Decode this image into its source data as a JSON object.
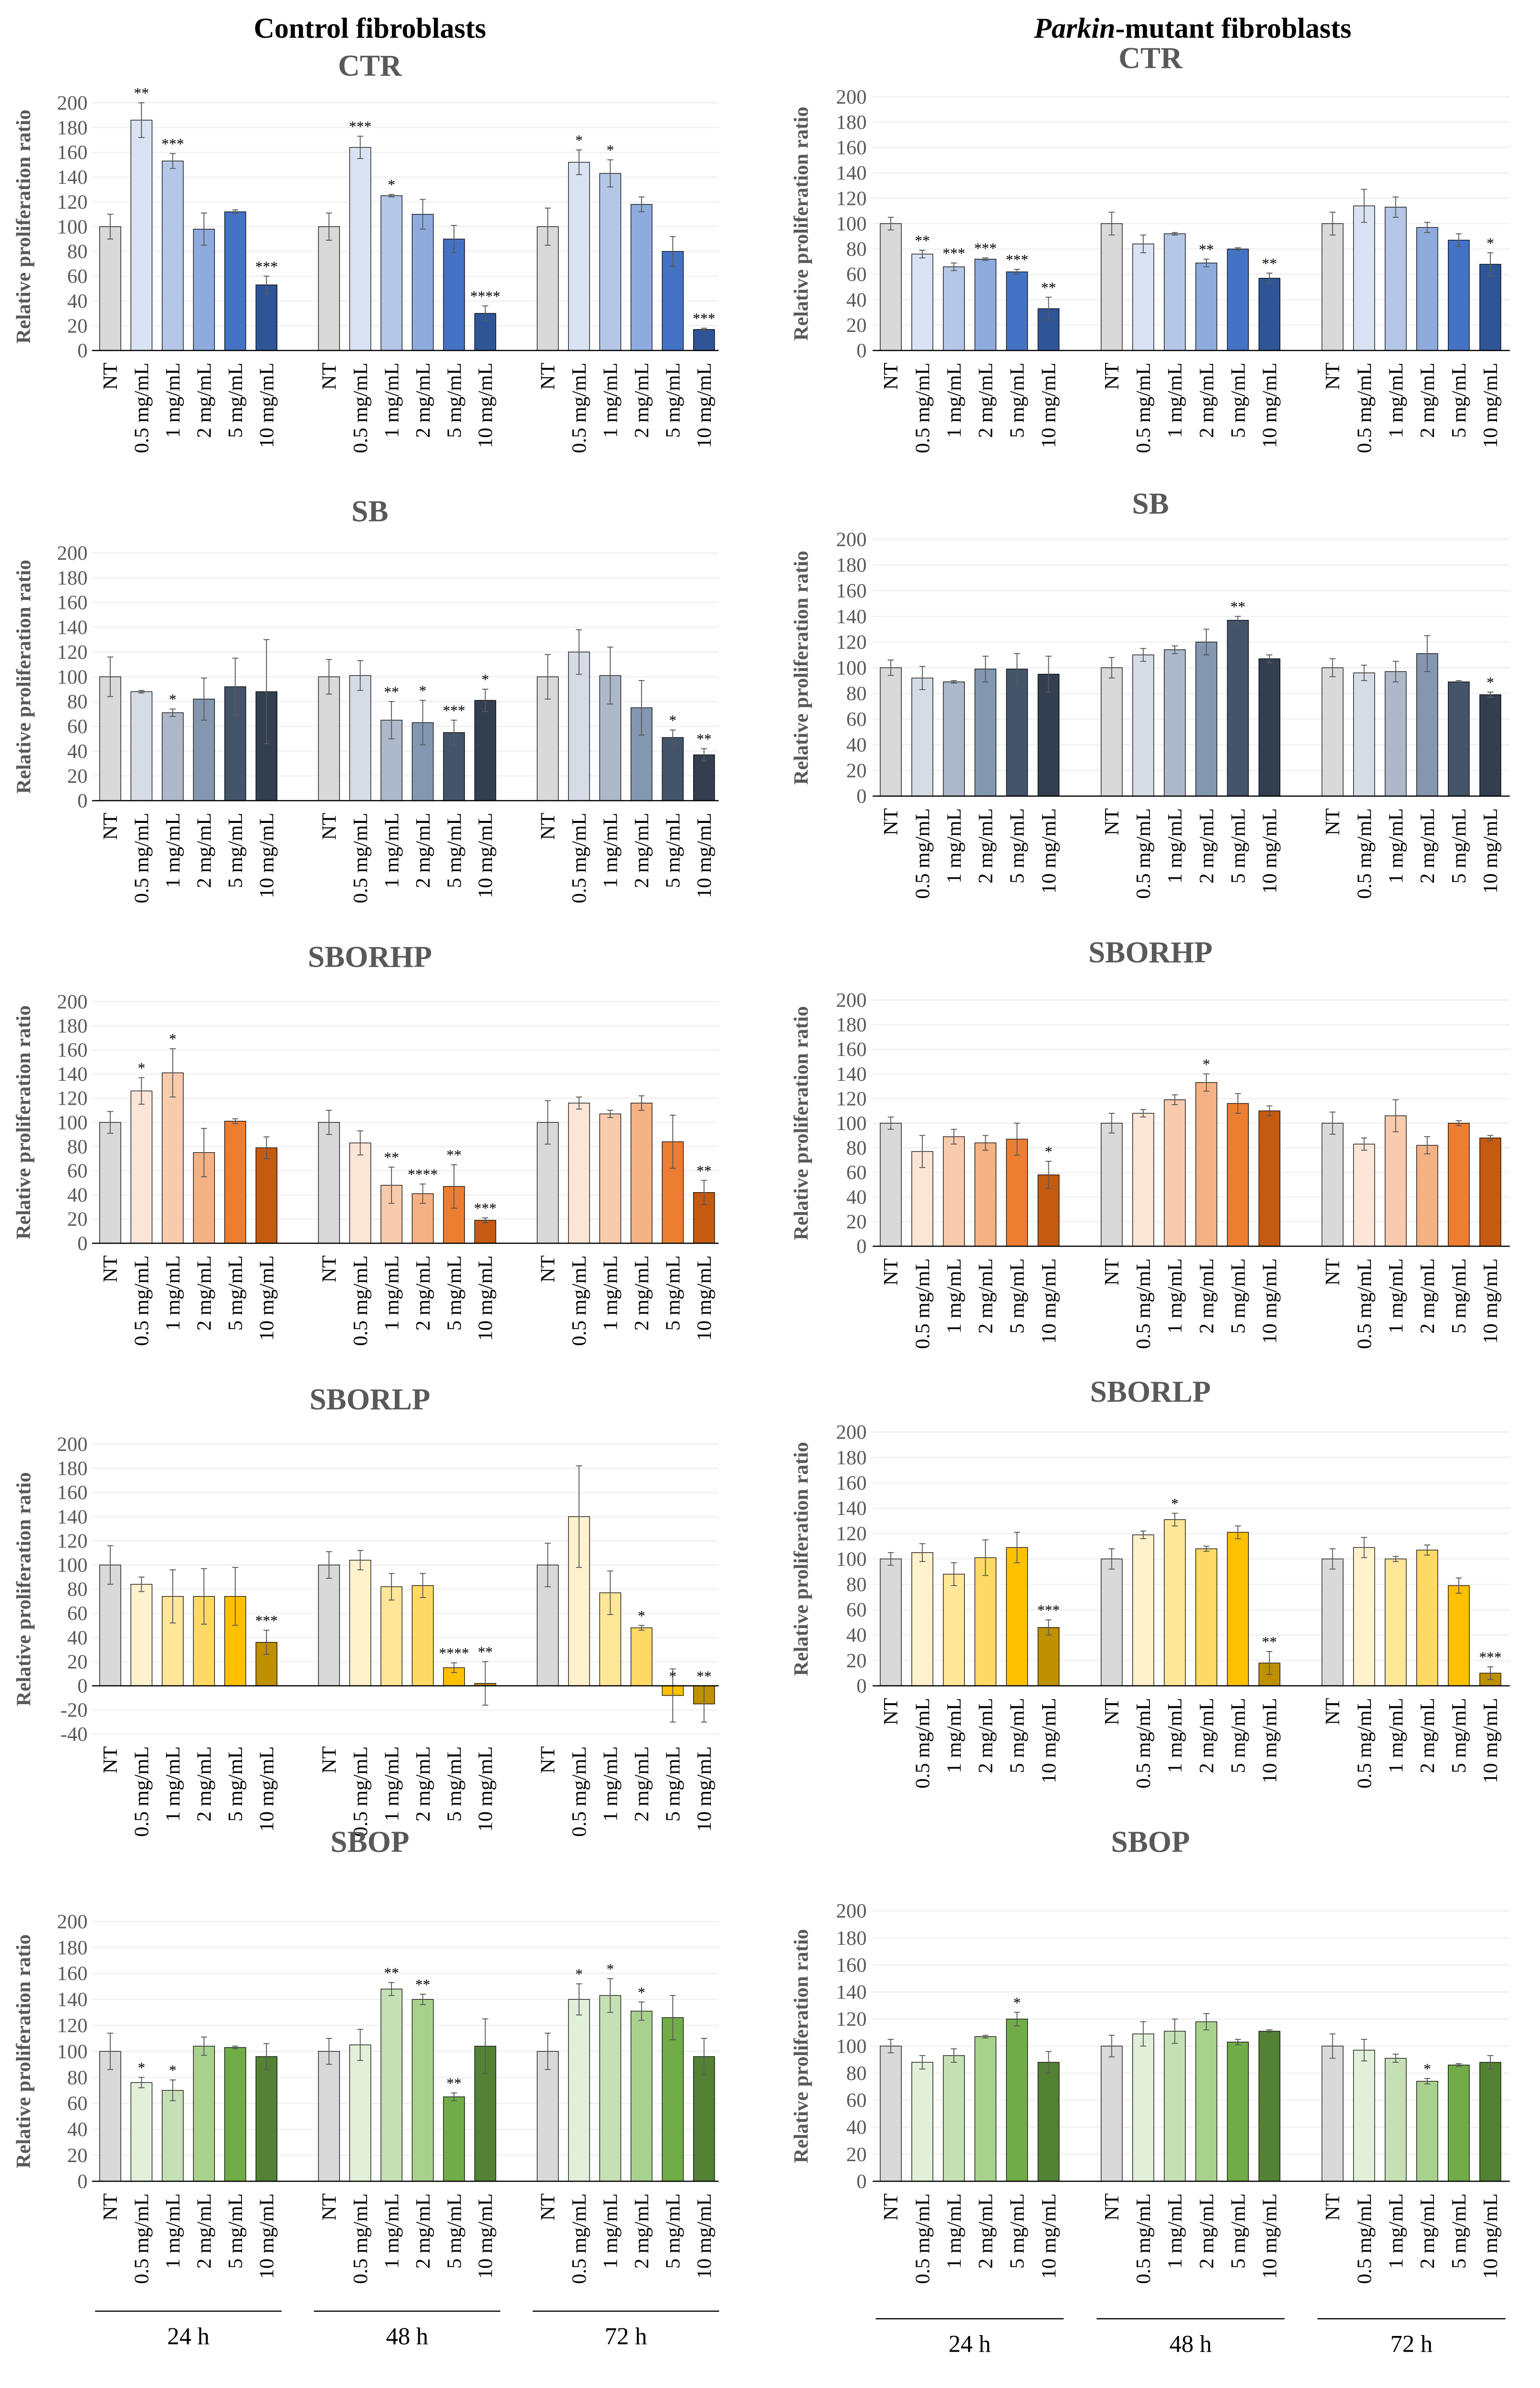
{
  "column_titles": {
    "control": "Control fibroblasts",
    "parkin_italic": "Parkin",
    "parkin_rest": "-mutant fibroblasts"
  },
  "time_points": [
    "24 h",
    "48 h",
    "72 h"
  ],
  "chart_data": [
    {
      "type": "bar",
      "panel": "control",
      "title": "CTR",
      "ylabel": "Relative proliferation ratio",
      "ylim": [
        0,
        200
      ],
      "yticks": [
        0,
        20,
        40,
        60,
        80,
        100,
        120,
        140,
        160,
        180,
        200
      ],
      "categories": [
        "NT",
        "0.5 mg/mL",
        "1 mg/mL",
        "2 mg/mL",
        "5 mg/mL",
        "10 mg/mL"
      ],
      "colors": [
        "#d9d9d9",
        "#dae3f3",
        "#b4c7e7",
        "#8faadc",
        "#4472c4",
        "#2f5597"
      ],
      "groups": [
        {
          "label": "24 h",
          "values": [
            100,
            186,
            153,
            98,
            112,
            53
          ],
          "errors": [
            10,
            14,
            6,
            13,
            1.5,
            7
          ],
          "stars": [
            "",
            "**",
            "***",
            "",
            "",
            "***"
          ]
        },
        {
          "label": "48 h",
          "values": [
            100,
            164,
            125,
            110,
            90,
            30
          ],
          "errors": [
            11,
            9,
            1,
            12,
            11,
            6
          ],
          "stars": [
            "",
            "***",
            "*",
            "",
            "",
            "****"
          ]
        },
        {
          "label": "72 h",
          "values": [
            100,
            152,
            143,
            118,
            80,
            17
          ],
          "errors": [
            15,
            10,
            11,
            6,
            12,
            1
          ],
          "stars": [
            "",
            "*",
            "*",
            "",
            "",
            "***"
          ]
        }
      ]
    },
    {
      "type": "bar",
      "panel": "control",
      "title": "SB",
      "ylabel": "Relative proliferation ratio",
      "ylim": [
        0,
        200
      ],
      "yticks": [
        0,
        20,
        40,
        60,
        80,
        100,
        120,
        140,
        160,
        180,
        200
      ],
      "categories": [
        "NT",
        "0.5 mg/mL",
        "1 mg/mL",
        "2 mg/mL",
        "5 mg/mL",
        "10 mg/mL"
      ],
      "colors": [
        "#d9d9d9",
        "#d6dce5",
        "#adb9ca",
        "#8497b0",
        "#44546a",
        "#333f50"
      ],
      "groups": [
        {
          "label": "24 h",
          "values": [
            100,
            88,
            71,
            82,
            92,
            88
          ],
          "errors": [
            16,
            1,
            3,
            17,
            23,
            42
          ],
          "stars": [
            "",
            "",
            "*",
            "",
            "",
            ""
          ]
        },
        {
          "label": "48 h",
          "values": [
            100,
            101,
            65,
            63,
            55,
            81
          ],
          "errors": [
            14,
            12,
            15,
            18,
            10,
            9
          ],
          "stars": [
            "",
            "",
            "**",
            "*",
            "***",
            "*"
          ]
        },
        {
          "label": "72 h",
          "values": [
            100,
            120,
            101,
            75,
            51,
            37
          ],
          "errors": [
            18,
            18,
            23,
            22,
            6,
            5
          ],
          "stars": [
            "",
            "",
            "",
            "",
            "*",
            "**"
          ]
        }
      ]
    },
    {
      "type": "bar",
      "panel": "control",
      "title": "SBORHP",
      "ylabel": "Relative proliferation ratio",
      "ylim": [
        0,
        200
      ],
      "yticks": [
        0,
        20,
        40,
        60,
        80,
        100,
        120,
        140,
        160,
        180,
        200
      ],
      "categories": [
        "NT",
        "0.5 mg/mL",
        "1 mg/mL",
        "2 mg/mL",
        "5 mg/mL",
        "10 mg/mL"
      ],
      "colors": [
        "#d9d9d9",
        "#fbe5d6",
        "#f8cbad",
        "#f4b183",
        "#ed7d31",
        "#c55a11"
      ],
      "groups": [
        {
          "label": "24 h",
          "values": [
            100,
            126,
            141,
            75,
            101,
            79
          ],
          "errors": [
            9,
            11,
            20,
            20,
            2,
            9
          ],
          "stars": [
            "",
            "*",
            "*",
            "",
            "",
            ""
          ]
        },
        {
          "label": "48 h",
          "values": [
            100,
            83,
            48,
            41,
            47,
            19
          ],
          "errors": [
            10,
            10,
            15,
            8,
            18,
            2
          ],
          "stars": [
            "",
            "",
            "**",
            "****",
            "**",
            "***"
          ]
        },
        {
          "label": "72 h",
          "values": [
            100,
            116,
            107,
            116,
            84,
            42
          ],
          "errors": [
            18,
            5,
            3,
            6,
            22,
            10
          ],
          "stars": [
            "",
            "",
            "",
            "",
            "",
            "**"
          ]
        }
      ]
    },
    {
      "type": "bar",
      "panel": "control",
      "title": "SBORLP",
      "ylabel": "Relative proliferation ratio",
      "ylim": [
        -40,
        200
      ],
      "yticks": [
        -40,
        -20,
        0,
        20,
        40,
        60,
        80,
        100,
        120,
        140,
        160,
        180,
        200
      ],
      "categories": [
        "NT",
        "0.5 mg/mL",
        "1 mg/mL",
        "2 mg/mL",
        "5 mg/mL",
        "10 mg/mL"
      ],
      "colors": [
        "#d9d9d9",
        "#fff2cc",
        "#ffe699",
        "#ffd966",
        "#ffc000",
        "#bf9000"
      ],
      "groups": [
        {
          "label": "24 h",
          "values": [
            100,
            84,
            74,
            74,
            74,
            36
          ],
          "errors": [
            16,
            6,
            22,
            23,
            24,
            10
          ],
          "stars": [
            "",
            "",
            "",
            "",
            "",
            "***"
          ]
        },
        {
          "label": "48 h",
          "values": [
            100,
            104,
            82,
            83,
            15,
            2
          ],
          "errors": [
            11,
            8,
            11,
            10,
            4,
            18
          ],
          "stars": [
            "",
            "",
            "",
            "",
            "****",
            "**"
          ]
        },
        {
          "label": "72 h",
          "values": [
            100,
            140,
            77,
            48,
            -8,
            -15
          ],
          "errors": [
            18,
            42,
            18,
            2,
            22,
            15
          ],
          "stars": [
            "",
            "",
            "",
            "*",
            "*",
            "**"
          ]
        }
      ]
    },
    {
      "type": "bar",
      "panel": "control",
      "title": "SBOP",
      "ylabel": "Relative proliferation ratio",
      "ylim": [
        0,
        200
      ],
      "yticks": [
        0,
        20,
        40,
        60,
        80,
        100,
        120,
        140,
        160,
        180,
        200
      ],
      "categories": [
        "NT",
        "0.5 mg/mL",
        "1 mg/mL",
        "2 mg/mL",
        "5 mg/mL",
        "10 mg/mL"
      ],
      "colors": [
        "#d9d9d9",
        "#e2f0d9",
        "#c5e0b4",
        "#a9d18e",
        "#70ad47",
        "#548235"
      ],
      "groups": [
        {
          "label": "24 h",
          "values": [
            100,
            76,
            70,
            104,
            103,
            96
          ],
          "errors": [
            14,
            4,
            8,
            7,
            1,
            10
          ],
          "stars": [
            "",
            "*",
            "*",
            "",
            "",
            ""
          ]
        },
        {
          "label": "48 h",
          "values": [
            100,
            105,
            148,
            140,
            65,
            104
          ],
          "errors": [
            10,
            12,
            5,
            4,
            3,
            21
          ],
          "stars": [
            "",
            "",
            "**",
            "**",
            "**",
            ""
          ]
        },
        {
          "label": "72 h",
          "values": [
            100,
            140,
            143,
            131,
            126,
            96
          ],
          "errors": [
            14,
            12,
            13,
            7,
            17,
            14
          ],
          "stars": [
            "",
            "*",
            "*",
            "*",
            "",
            ""
          ]
        }
      ]
    },
    {
      "type": "bar",
      "panel": "parkin",
      "title": "CTR",
      "ylabel": "Relative proliferation ratio",
      "ylim": [
        0,
        200
      ],
      "yticks": [
        0,
        20,
        40,
        60,
        80,
        100,
        120,
        140,
        160,
        180,
        200
      ],
      "categories": [
        "NT",
        "0.5 mg/mL",
        "1 mg/mL",
        "2 mg/mL",
        "5 mg/mL",
        "10 mg/mL"
      ],
      "colors": [
        "#d9d9d9",
        "#dae3f3",
        "#b4c7e7",
        "#8faadc",
        "#4472c4",
        "#2f5597"
      ],
      "groups": [
        {
          "label": "24 h",
          "values": [
            100,
            76,
            66,
            72,
            62,
            33
          ],
          "errors": [
            5,
            3,
            3,
            1,
            2,
            9
          ],
          "stars": [
            "",
            "**",
            "***",
            "***",
            "***",
            "**"
          ]
        },
        {
          "label": "48 h",
          "values": [
            100,
            84,
            92,
            69,
            80,
            57
          ],
          "errors": [
            9,
            7,
            1,
            3,
            1,
            4
          ],
          "stars": [
            "",
            "",
            "",
            "**",
            "",
            "**"
          ]
        },
        {
          "label": "72 h",
          "values": [
            100,
            114,
            113,
            97,
            87,
            68
          ],
          "errors": [
            9,
            13,
            8,
            4,
            5,
            9
          ],
          "stars": [
            "",
            "",
            "",
            "",
            "",
            "*"
          ]
        }
      ]
    },
    {
      "type": "bar",
      "panel": "parkin",
      "title": "SB",
      "ylabel": "Relative proliferation ratio",
      "ylim": [
        0,
        200
      ],
      "yticks": [
        0,
        20,
        40,
        60,
        80,
        100,
        120,
        140,
        160,
        180,
        200
      ],
      "categories": [
        "NT",
        "0.5 mg/mL",
        "1 mg/mL",
        "2 mg/mL",
        "5 mg/mL",
        "10 mg/mL"
      ],
      "colors": [
        "#d9d9d9",
        "#d6dce5",
        "#adb9ca",
        "#8497b0",
        "#44546a",
        "#333f50"
      ],
      "groups": [
        {
          "label": "24 h",
          "values": [
            100,
            92,
            89,
            99,
            99,
            95
          ],
          "errors": [
            6,
            9,
            1,
            10,
            12,
            14
          ],
          "stars": [
            "",
            "",
            "",
            "",
            "",
            ""
          ]
        },
        {
          "label": "48 h",
          "values": [
            100,
            110,
            114,
            120,
            137,
            107
          ],
          "errors": [
            8,
            5,
            3,
            10,
            3,
            3
          ],
          "stars": [
            "",
            "",
            "",
            "",
            "**",
            ""
          ]
        },
        {
          "label": "72 h",
          "values": [
            100,
            96,
            97,
            111,
            89,
            79
          ],
          "errors": [
            7,
            6,
            8,
            14,
            1,
            2
          ],
          "stars": [
            "",
            "",
            "",
            "",
            "",
            "*"
          ]
        }
      ]
    },
    {
      "type": "bar",
      "panel": "parkin",
      "title": "SBORHP",
      "ylabel": "Relative proliferation ratio",
      "ylim": [
        0,
        200
      ],
      "yticks": [
        0,
        20,
        40,
        60,
        80,
        100,
        120,
        140,
        160,
        180,
        200
      ],
      "categories": [
        "NT",
        "0.5 mg/mL",
        "1 mg/mL",
        "2 mg/mL",
        "5 mg/mL",
        "10 mg/mL"
      ],
      "colors": [
        "#d9d9d9",
        "#fbe5d6",
        "#f8cbad",
        "#f4b183",
        "#ed7d31",
        "#c55a11"
      ],
      "groups": [
        {
          "label": "24 h",
          "values": [
            100,
            77,
            89,
            84,
            87,
            58
          ],
          "errors": [
            5,
            13,
            6,
            6,
            13,
            11
          ],
          "stars": [
            "",
            "",
            "",
            "",
            "",
            "*"
          ]
        },
        {
          "label": "48 h",
          "values": [
            100,
            108,
            119,
            133,
            116,
            110
          ],
          "errors": [
            8,
            3,
            4,
            7,
            8,
            4
          ],
          "stars": [
            "",
            "",
            "",
            "*",
            "",
            ""
          ]
        },
        {
          "label": "72 h",
          "values": [
            100,
            83,
            106,
            82,
            100,
            88
          ],
          "errors": [
            9,
            5,
            13,
            7,
            2,
            2
          ],
          "stars": [
            "",
            "",
            "",
            "",
            "",
            ""
          ]
        }
      ]
    },
    {
      "type": "bar",
      "panel": "parkin",
      "title": "SBORLP",
      "ylabel": "Relative proliferation ratio",
      "ylim": [
        0,
        200
      ],
      "yticks": [
        0,
        20,
        40,
        60,
        80,
        100,
        120,
        140,
        160,
        180,
        200
      ],
      "categories": [
        "NT",
        "0.5 mg/mL",
        "1 mg/mL",
        "2 mg/mL",
        "5 mg/mL",
        "10 mg/mL"
      ],
      "colors": [
        "#d9d9d9",
        "#fff2cc",
        "#ffe699",
        "#ffd966",
        "#ffc000",
        "#bf9000"
      ],
      "groups": [
        {
          "label": "24 h",
          "values": [
            100,
            105,
            88,
            101,
            109,
            46
          ],
          "errors": [
            5,
            7,
            9,
            14,
            12,
            6
          ],
          "stars": [
            "",
            "",
            "",
            "",
            "",
            "***"
          ]
        },
        {
          "label": "48 h",
          "values": [
            100,
            119,
            131,
            108,
            121,
            18
          ],
          "errors": [
            8,
            3,
            5,
            2,
            5,
            9
          ],
          "stars": [
            "",
            "",
            "*",
            "",
            "",
            "**"
          ]
        },
        {
          "label": "72 h",
          "values": [
            100,
            109,
            100,
            107,
            79,
            10
          ],
          "errors": [
            8,
            8,
            2,
            4,
            6,
            5
          ],
          "stars": [
            "",
            "",
            "",
            "",
            "",
            "***"
          ]
        }
      ]
    },
    {
      "type": "bar",
      "panel": "parkin",
      "title": "SBOP",
      "ylabel": "Relative proliferation ratio",
      "ylim": [
        0,
        200
      ],
      "yticks": [
        0,
        20,
        40,
        60,
        80,
        100,
        120,
        140,
        160,
        180,
        200
      ],
      "categories": [
        "NT",
        "0.5 mg/mL",
        "1 mg/mL",
        "2 mg/mL",
        "5 mg/mL",
        "10 mg/mL"
      ],
      "colors": [
        "#d9d9d9",
        "#e2f0d9",
        "#c5e0b4",
        "#a9d18e",
        "#70ad47",
        "#548235"
      ],
      "groups": [
        {
          "label": "24 h",
          "values": [
            100,
            88,
            93,
            107,
            120,
            88
          ],
          "errors": [
            5,
            5,
            5,
            1,
            5,
            8
          ],
          "stars": [
            "",
            "",
            "",
            "",
            "*",
            ""
          ]
        },
        {
          "label": "48 h",
          "values": [
            100,
            109,
            111,
            118,
            103,
            111
          ],
          "errors": [
            8,
            9,
            9,
            6,
            2,
            1
          ],
          "stars": [
            "",
            "",
            "",
            "",
            "",
            ""
          ]
        },
        {
          "label": "72 h",
          "values": [
            100,
            97,
            91,
            74,
            86,
            88
          ],
          "errors": [
            9,
            8,
            3,
            2,
            1,
            5
          ],
          "stars": [
            "",
            "",
            "",
            "*",
            "",
            ""
          ]
        }
      ]
    }
  ]
}
